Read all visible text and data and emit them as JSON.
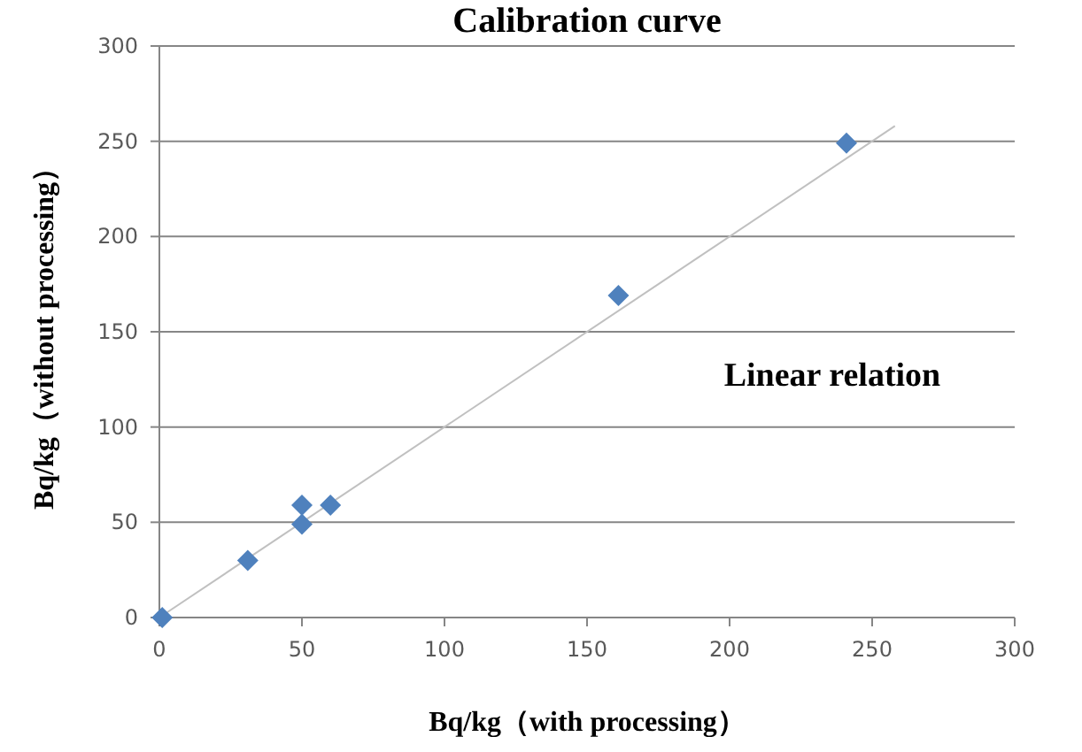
{
  "chart_data": {
    "type": "scatter",
    "title": "Calibration curve",
    "xlabel": "Bq/kg（with processing）",
    "ylabel": "Bq/kg（without processing）",
    "annotations": [
      "Linear relation"
    ],
    "xlim": [
      0,
      300
    ],
    "xticks": [
      0,
      50,
      100,
      150,
      200,
      250,
      300
    ],
    "ylim": [
      0,
      300
    ],
    "yticks": [
      0,
      50,
      100,
      150,
      200,
      250,
      300
    ],
    "grid": "y",
    "series": [
      {
        "type": "line",
        "color": "#c0c0c0",
        "x": [
          0,
          258
        ],
        "values": [
          0,
          258
        ]
      },
      {
        "color": "#4f81bd",
        "marker": "diamond",
        "x": [
          1,
          31,
          50,
          50,
          60,
          161,
          241
        ],
        "values": [
          0,
          30,
          49,
          59,
          59,
          169,
          249
        ]
      }
    ]
  }
}
